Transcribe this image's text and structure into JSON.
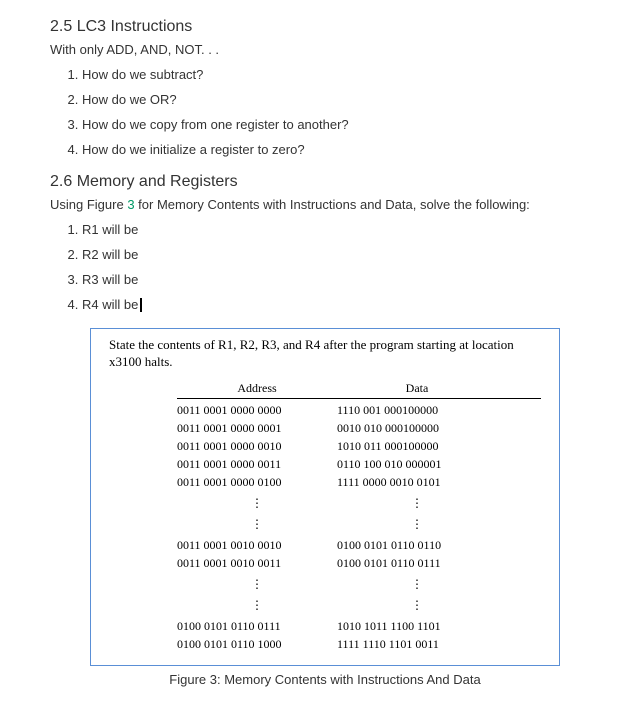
{
  "section25": {
    "heading": "2.5 LC3 Instructions",
    "intro": "With only ADD, AND, NOT. . .",
    "items": [
      "How do we subtract?",
      "How do we OR?",
      "How do we copy from one register to another?",
      "How do we initialize a register to zero?"
    ]
  },
  "section26": {
    "heading": "2.6 Memory and Registers",
    "intro_pre": "Using Figure ",
    "intro_link": "3",
    "intro_post": " for Memory Contents with Instructions and Data, solve the following:",
    "items": [
      "R1 will be",
      "R2 will be",
      "R3 will be",
      "R4 will be"
    ]
  },
  "figure": {
    "prompt": "State the contents of R1, R2, R3, and R4 after the program starting at location x3100 halts.",
    "header_address": "Address",
    "header_data": "Data",
    "rows": [
      {
        "addr": "0011 0001 0000 0000",
        "data": "1110 001 000100000"
      },
      {
        "addr": "0011 0001 0000 0001",
        "data": "0010 010 000100000"
      },
      {
        "addr": "0011 0001 0000 0010",
        "data": "1010 011 000100000"
      },
      {
        "addr": "0011 0001 0000 0011",
        "data": "0110 100 010 000001"
      },
      {
        "addr": "0011 0001 0000 0100",
        "data": "1111 0000 0010 0101"
      },
      {
        "dots": true
      },
      {
        "dots": true
      },
      {
        "addr": "0011 0001 0010 0010",
        "data": "0100 0101 0110 0110"
      },
      {
        "addr": "0011 0001 0010 0011",
        "data": "0100 0101 0110 0111"
      },
      {
        "dots": true
      },
      {
        "dots": true
      },
      {
        "addr": "0100 0101 0110 0111",
        "data": "1010 1011 1100 1101"
      },
      {
        "addr": "0100 0101 0110 1000",
        "data": "1111 1110 1101 0011"
      }
    ],
    "caption": "Figure 3: Memory Contents with Instructions And Data"
  }
}
